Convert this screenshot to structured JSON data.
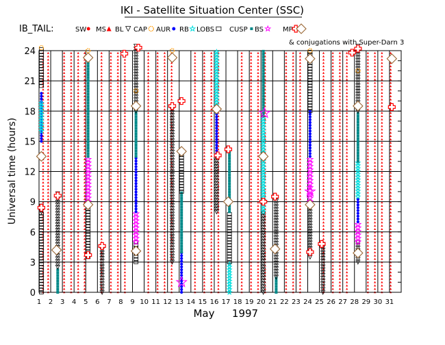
{
  "chart_data": {
    "type": "scatter",
    "title": "IKI - Satellite Situation Center (SSC)",
    "satellite": "IB_TAIL:",
    "xlabel_month": "May",
    "xlabel_year": "1997",
    "ylabel": "Universal time (hours)",
    "x_ticks": [
      1,
      2,
      3,
      4,
      5,
      6,
      7,
      8,
      9,
      10,
      11,
      12,
      13,
      14,
      15,
      16,
      17,
      18,
      19,
      20,
      21,
      22,
      23,
      24,
      25,
      26,
      27,
      28,
      29,
      30,
      31
    ],
    "x_range": [
      1,
      32
    ],
    "y_ticks": [
      0,
      3,
      6,
      9,
      12,
      15,
      18,
      21,
      24
    ],
    "y_range": [
      0,
      24
    ],
    "legend": [
      {
        "key": "SW",
        "label": "SW",
        "color": "#ff0000",
        "symbol": "dot"
      },
      {
        "key": "MS",
        "label": "MS",
        "color": "#ff0000",
        "symbol": "tri"
      },
      {
        "key": "BL",
        "label": "BL",
        "color": "#000000",
        "symbol": "tri-down"
      },
      {
        "key": "CAP",
        "label": "CAP",
        "color": "#ff9900",
        "symbol": "sun"
      },
      {
        "key": "AUR",
        "label": "AUR",
        "color": "#0000ff",
        "symbol": "dot"
      },
      {
        "key": "RB",
        "label": "RB",
        "color": "#00dddd",
        "symbol": "star"
      },
      {
        "key": "LOBS",
        "label": "LOBS",
        "color": "#000000",
        "symbol": "square"
      },
      {
        "key": "CUSP",
        "label": "CUSP",
        "color": "#008888",
        "symbol": "small-square"
      },
      {
        "key": "BS",
        "label": "BS",
        "color": "#ff00ff",
        "symbol": "star"
      },
      {
        "key": "MP",
        "label": "MP",
        "color": "#ff0000",
        "symbol": "cross"
      }
    ],
    "conjugation_label": "& conjugations with Super-Darn 3",
    "conjugation_symbol": "diamond",
    "ms_dot_columns": [
      1.35,
      1.78,
      3.15,
      3.75,
      4.35,
      4.9,
      6.35,
      7.15,
      7.75,
      8.35,
      10.35,
      11.15,
      11.75,
      12.35,
      14.35,
      15.15,
      15.75,
      16.35,
      18.35,
      19.15,
      19.75,
      20.35,
      22.15,
      22.75,
      23.35,
      25.35,
      26.15,
      26.75,
      27.35,
      29.15,
      29.75,
      30.35,
      31.1
    ],
    "passes": [
      {
        "day": 1.2,
        "segments": [
          {
            "region": "LOBS",
            "from": 0,
            "to": 8
          },
          {
            "region": "BL",
            "from": 8,
            "to": 8.6
          },
          {
            "region": "AUR",
            "from": 15,
            "to": 20
          },
          {
            "region": "RB",
            "from": 16,
            "to": 19
          },
          {
            "region": "LOBS",
            "from": 20.5,
            "to": 24.2
          }
        ]
      },
      {
        "day": 2.6,
        "segments": [
          {
            "region": "CUSP",
            "from": 0,
            "to": 2.5
          },
          {
            "region": "BL",
            "from": 2.5,
            "to": 9.8
          }
        ]
      },
      {
        "day": 5.2,
        "segments": [
          {
            "region": "LOBS",
            "from": 3.5,
            "to": 9
          },
          {
            "region": "BS",
            "from": 9,
            "to": 13.5
          },
          {
            "region": "CUSP",
            "from": 13.5,
            "to": 23
          }
        ]
      },
      {
        "day": 6.4,
        "segments": [
          {
            "region": "BL",
            "from": 0,
            "to": 4.5
          }
        ]
      },
      {
        "day": 9.3,
        "segments": [
          {
            "region": "LOBS",
            "from": 3,
            "to": 5
          },
          {
            "region": "BS",
            "from": 5,
            "to": 8
          },
          {
            "region": "AUR",
            "from": 8,
            "to": 13.5
          },
          {
            "region": "CUSP",
            "from": 13.5,
            "to": 18
          },
          {
            "region": "BL",
            "from": 18,
            "to": 24.5
          }
        ]
      },
      {
        "day": 12.4,
        "segments": [
          {
            "region": "BL",
            "from": 3,
            "to": 18.5
          }
        ]
      },
      {
        "day": 13.2,
        "segments": [
          {
            "region": "AUR",
            "from": 0,
            "to": 4
          },
          {
            "region": "CUSP",
            "from": 4,
            "to": 10
          },
          {
            "region": "LOBS",
            "from": 10,
            "to": 14
          }
        ]
      },
      {
        "day": 16.2,
        "segments": [
          {
            "region": "BL",
            "from": 8,
            "to": 13.5
          },
          {
            "region": "AUR",
            "from": 13.5,
            "to": 18
          },
          {
            "region": "RB",
            "from": 18,
            "to": 24
          }
        ]
      },
      {
        "day": 17.3,
        "segments": [
          {
            "region": "RB",
            "from": 0,
            "to": 3
          },
          {
            "region": "LOBS",
            "from": 3,
            "to": 8
          },
          {
            "region": "CUSP",
            "from": 8,
            "to": 14
          }
        ]
      },
      {
        "day": 20.2,
        "segments": [
          {
            "region": "BL",
            "from": 0,
            "to": 8
          },
          {
            "region": "RB",
            "from": 8,
            "to": 17.5
          },
          {
            "region": "CUSP",
            "from": 17.5,
            "to": 24
          }
        ]
      },
      {
        "day": 21.3,
        "segments": [
          {
            "region": "CUSP",
            "from": 0,
            "to": 1.5
          },
          {
            "region": "BL",
            "from": 1.5,
            "to": 9.5
          }
        ]
      },
      {
        "day": 24.2,
        "segments": [
          {
            "region": "BL",
            "from": 3.5,
            "to": 9
          },
          {
            "region": "BS",
            "from": 9,
            "to": 13.5
          },
          {
            "region": "AUR",
            "from": 13.5,
            "to": 18
          },
          {
            "region": "LOBS",
            "from": 18,
            "to": 24
          }
        ]
      },
      {
        "day": 25.3,
        "segments": [
          {
            "region": "BL",
            "from": 0,
            "to": 5
          }
        ]
      },
      {
        "day": 28.3,
        "segments": [
          {
            "region": "BL",
            "from": 3,
            "to": 5
          },
          {
            "region": "BS",
            "from": 5,
            "to": 7
          },
          {
            "region": "AUR",
            "from": 7,
            "to": 9.5
          },
          {
            "region": "RB",
            "from": 9.5,
            "to": 13
          },
          {
            "region": "CUSP",
            "from": 13,
            "to": 18
          },
          {
            "region": "BL",
            "from": 18,
            "to": 24.5
          }
        ]
      }
    ],
    "mp_crossings": [
      {
        "day": 1.2,
        "hour": 8.4
      },
      {
        "day": 2.6,
        "hour": 9.6
      },
      {
        "day": 5.2,
        "hour": 3.7
      },
      {
        "day": 6.4,
        "hour": 4.6
      },
      {
        "day": 8.3,
        "hour": 23.7
      },
      {
        "day": 9.5,
        "hour": 24.3
      },
      {
        "day": 12.4,
        "hour": 18.5
      },
      {
        "day": 13.2,
        "hour": 19.0
      },
      {
        "day": 16.3,
        "hour": 13.6
      },
      {
        "day": 17.2,
        "hour": 14.2
      },
      {
        "day": 20.2,
        "hour": 9.0
      },
      {
        "day": 21.2,
        "hour": 9.5
      },
      {
        "day": 24.2,
        "hour": 4.0
      },
      {
        "day": 25.2,
        "hour": 4.8
      },
      {
        "day": 27.8,
        "hour": 23.8
      },
      {
        "day": 28.3,
        "hour": 24.2
      },
      {
        "day": 31.2,
        "hour": 18.4
      }
    ],
    "conjugations": [
      {
        "day": 1.2,
        "hour": 13.5
      },
      {
        "day": 2.5,
        "hour": 4.2
      },
      {
        "day": 5.2,
        "hour": 23.3
      },
      {
        "day": 5.2,
        "hour": 8.7
      },
      {
        "day": 9.3,
        "hour": 18.5
      },
      {
        "day": 9.3,
        "hour": 4.1
      },
      {
        "day": 12.4,
        "hour": 23.3
      },
      {
        "day": 13.2,
        "hour": 14.0
      },
      {
        "day": 16.2,
        "hour": 18.2
      },
      {
        "day": 17.2,
        "hour": 9.0
      },
      {
        "day": 20.2,
        "hour": 13.5
      },
      {
        "day": 21.2,
        "hour": 4.3
      },
      {
        "day": 24.2,
        "hour": 23.2
      },
      {
        "day": 24.2,
        "hour": 8.7
      },
      {
        "day": 28.3,
        "hour": 18.5
      },
      {
        "day": 28.3,
        "hour": 3.9
      },
      {
        "day": 31.2,
        "hour": 23.2
      }
    ],
    "bs_crossings": [
      {
        "day": 13.2,
        "hour": 1.0
      },
      {
        "day": 20.3,
        "hour": 17.8
      },
      {
        "day": 24.2,
        "hour": 10.0
      }
    ],
    "cap_markers": [
      {
        "day": 1.2,
        "hour": 24.3
      },
      {
        "day": 5.2,
        "hour": 24.0
      },
      {
        "day": 9.3,
        "hour": 20.0
      },
      {
        "day": 12.4,
        "hour": 24.0
      },
      {
        "day": 17.3,
        "hour": 9.0
      },
      {
        "day": 24.2,
        "hour": 24.0
      },
      {
        "day": 28.3,
        "hour": 22.0
      }
    ]
  }
}
